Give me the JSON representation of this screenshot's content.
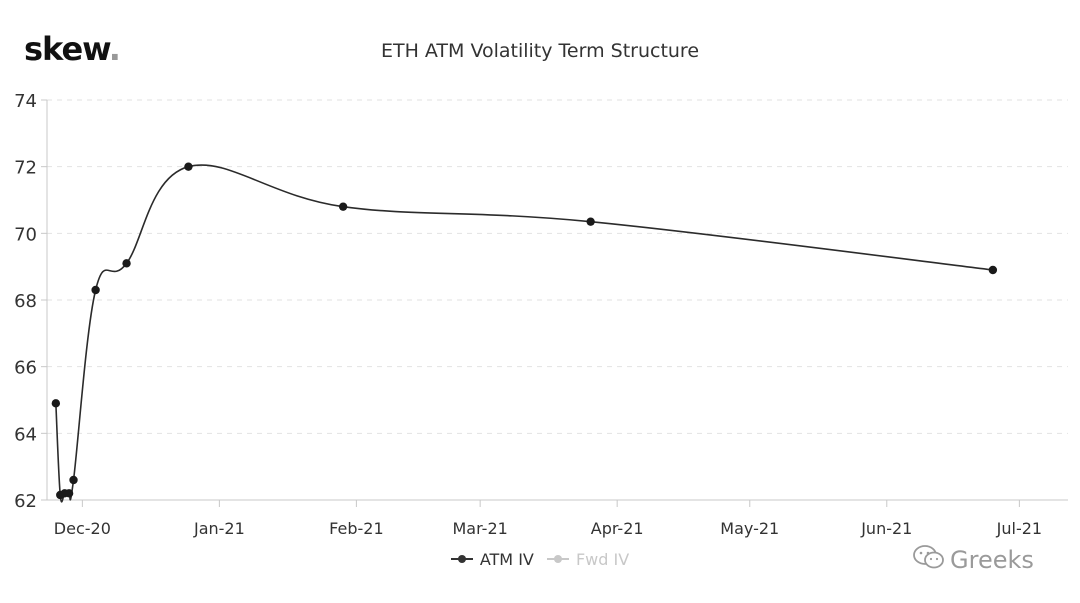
{
  "logo": {
    "text": "skew",
    "dot": "."
  },
  "watermark": {
    "text": "Greeks",
    "icon": "wechat-icon"
  },
  "colors": {
    "line": "#2b2b2b",
    "grid": "#e2e2e2",
    "axis": "#c8c8c8",
    "legend_inactive": "#c8c8c8"
  },
  "chart_data": {
    "type": "line",
    "title": "ETH ATM Volatility Term Structure",
    "xlabel": "",
    "ylabel": "",
    "xlim": [
      "2020-11-23",
      "2021-07-12"
    ],
    "ylim": [
      62,
      74
    ],
    "yticks": [
      62,
      64,
      66,
      68,
      70,
      72,
      74
    ],
    "xticks": [
      {
        "label": "Dec-20",
        "date": "2020-12-01"
      },
      {
        "label": "Jan-21",
        "date": "2021-01-01"
      },
      {
        "label": "Feb-21",
        "date": "2021-02-01"
      },
      {
        "label": "Mar-21",
        "date": "2021-03-01"
      },
      {
        "label": "Apr-21",
        "date": "2021-04-01"
      },
      {
        "label": "May-21",
        "date": "2021-05-01"
      },
      {
        "label": "Jun-21",
        "date": "2021-06-01"
      },
      {
        "label": "Jul-21",
        "date": "2021-07-01"
      }
    ],
    "grid": "horizontal dashed",
    "legend_position": "bottom-center",
    "series": [
      {
        "name": "ATM IV",
        "visible": true,
        "points": [
          {
            "x": "2020-11-25",
            "y": 64.9
          },
          {
            "x": "2020-11-26",
            "y": 62.15
          },
          {
            "x": "2020-11-27",
            "y": 62.2
          },
          {
            "x": "2020-11-28",
            "y": 62.2
          },
          {
            "x": "2020-11-29",
            "y": 62.6
          },
          {
            "x": "2020-12-04",
            "y": 68.3
          },
          {
            "x": "2020-12-11",
            "y": 69.1
          },
          {
            "x": "2020-12-25",
            "y": 72.0
          },
          {
            "x": "2021-01-29",
            "y": 70.8
          },
          {
            "x": "2021-03-26",
            "y": 70.35
          },
          {
            "x": "2021-06-25",
            "y": 68.9
          }
        ]
      },
      {
        "name": "Fwd IV",
        "visible": false,
        "points": []
      }
    ]
  }
}
